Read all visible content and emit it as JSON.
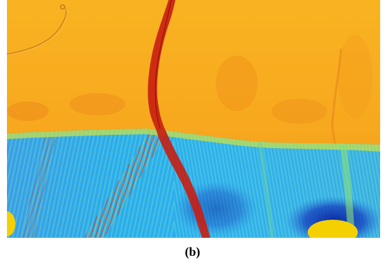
{
  "figure": {
    "caption": "(b)",
    "image_description_name": "false-color-micrograph"
  }
}
